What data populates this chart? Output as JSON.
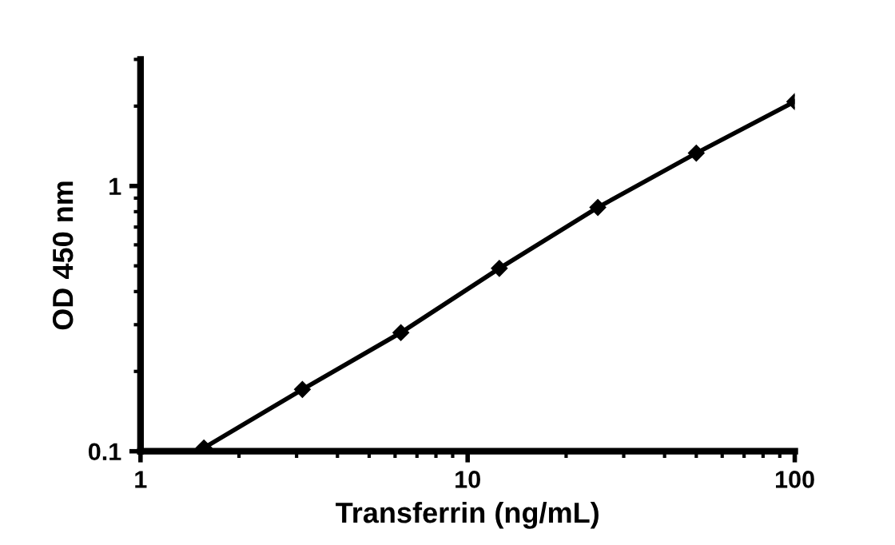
{
  "chart_data": {
    "type": "line",
    "xlabel": "Transferrin (ng/mL)",
    "ylabel": "OD 450 nm",
    "log": "xy",
    "x": [
      1.5625,
      3.125,
      6.25,
      12.5,
      25,
      50,
      100
    ],
    "series": [
      {
        "color": "#000000",
        "values": [
          0.103,
          0.171,
          0.28,
          0.489,
          0.83,
          1.33,
          2.08
        ]
      }
    ],
    "marker": "diamond",
    "line_style": "solid",
    "xlim": [
      1,
      100
    ],
    "xticks": [
      1,
      10,
      100
    ],
    "ylim": [
      0.1,
      3
    ],
    "yticks": [
      0.1,
      1
    ],
    "grid": false,
    "legend": false
  }
}
